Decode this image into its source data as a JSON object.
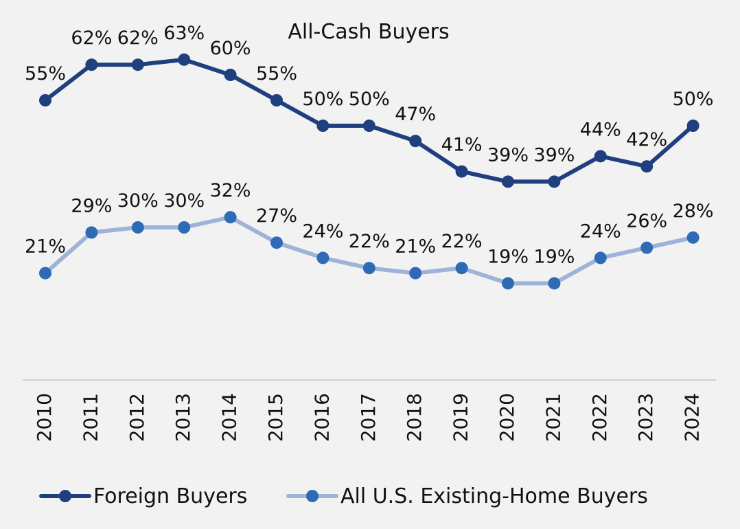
{
  "chart_data": {
    "type": "line",
    "title": "All-Cash Buyers",
    "xlabel": "",
    "ylabel": "",
    "categories": [
      "2010",
      "2011",
      "2012",
      "2013",
      "2014",
      "2015",
      "2016",
      "2017",
      "2018",
      "2019",
      "2020",
      "2021",
      "2022",
      "2023",
      "2024"
    ],
    "series": [
      {
        "name": "Foreign Buyers",
        "values": [
          55,
          62,
          62,
          63,
          60,
          55,
          50,
          50,
          47,
          41,
          39,
          39,
          44,
          42,
          50
        ],
        "labels": [
          "55%",
          "62%",
          "62%",
          "63%",
          "60%",
          "55%",
          "50%",
          "50%",
          "47%",
          "41%",
          "39%",
          "39%",
          "44%",
          "42%",
          "50%"
        ],
        "color": "#1f3f7f",
        "marker_color": "#1f3f7f"
      },
      {
        "name": "All U.S. Existing-Home Buyers",
        "values": [
          21,
          29,
          30,
          30,
          32,
          27,
          24,
          22,
          21,
          22,
          19,
          19,
          24,
          26,
          28
        ],
        "labels": [
          "21%",
          "29%",
          "30%",
          "30%",
          "32%",
          "27%",
          "24%",
          "22%",
          "21%",
          "22%",
          "19%",
          "19%",
          "24%",
          "26%",
          "28%"
        ],
        "color": "#9fb3d9",
        "marker_color": "#2f6bb5"
      }
    ],
    "ylim": [
      0,
      70
    ],
    "grid": false,
    "legend": "bottom",
    "background": "#f2f2f2",
    "axis_color": "#d0d0d0"
  }
}
